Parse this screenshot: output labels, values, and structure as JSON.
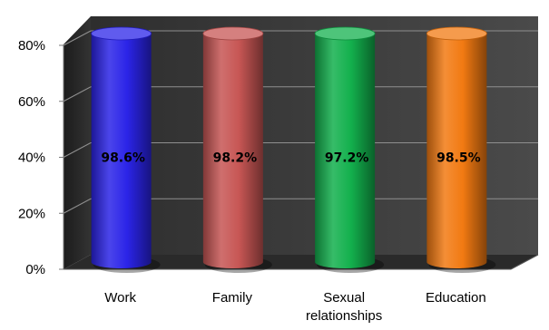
{
  "chart_data": {
    "type": "bar",
    "style": "3d-cylinder",
    "categories": [
      "Work",
      "Family",
      "Sexual relationships",
      "Education"
    ],
    "category_lines": [
      [
        "Work"
      ],
      [
        "Family"
      ],
      [
        "Sexual",
        "relationships"
      ],
      [
        "Education"
      ]
    ],
    "values": [
      98.6,
      98.2,
      97.2,
      98.5
    ],
    "data_labels": [
      "98.6%",
      "98.2%",
      "97.2%",
      "98.5%"
    ],
    "colors": [
      "#2b24e8",
      "#c75654",
      "#13b04d",
      "#f27a12"
    ],
    "yticks": [
      "0%",
      "20%",
      "40%",
      "60%",
      "80%"
    ],
    "ylim": [
      0,
      80
    ],
    "grid": true,
    "legend": "none",
    "background": "#3a3a3a",
    "title": "",
    "xlabel": "",
    "ylabel": ""
  }
}
